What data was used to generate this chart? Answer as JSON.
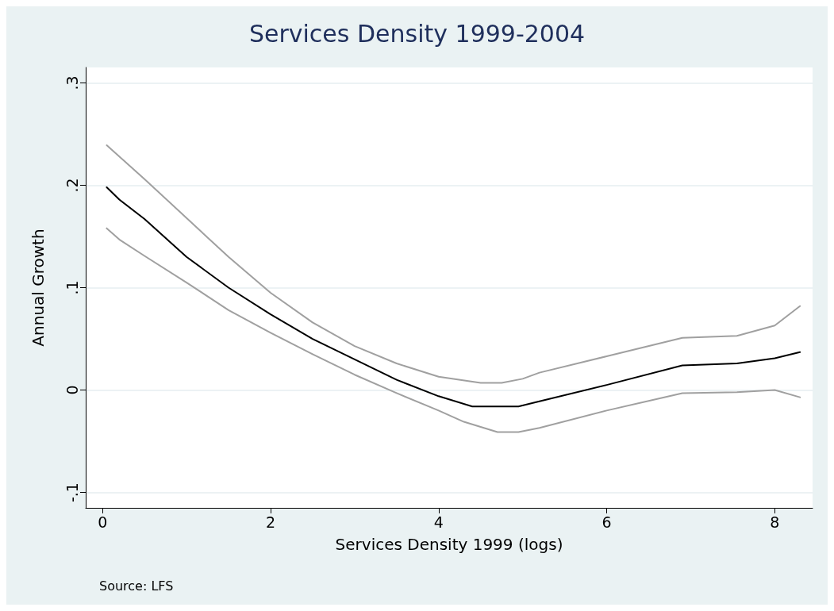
{
  "chart_data": {
    "type": "line",
    "title": "Services Density 1999-2004",
    "xlabel": "Services Density 1999 (logs)",
    "ylabel": "Annual Growth",
    "annotations": [
      "Source: LFS"
    ],
    "xlim": [
      -0.2,
      8.45
    ],
    "xticks": [
      0,
      2,
      4,
      6,
      8
    ],
    "ylim": [
      -0.115,
      0.315
    ],
    "yticks": [
      {
        "value": -0.1,
        "label": "-.1"
      },
      {
        "value": 0,
        "label": "0"
      },
      {
        "value": 0.1,
        "label": ".1"
      },
      {
        "value": 0.2,
        "label": ".2"
      },
      {
        "value": 0.3,
        "label": ".3"
      }
    ],
    "grid": "y",
    "marker": "none",
    "line_style": "solid",
    "series": [
      {
        "color": "#a0a0a0",
        "x": [
          0.05,
          0.2,
          0.5,
          1.0,
          1.5,
          2.0,
          2.5,
          3.0,
          3.5,
          4.0,
          4.5,
          4.75,
          5.0,
          5.2,
          6.0,
          6.9,
          7.55,
          8.0,
          8.3
        ],
        "values": [
          0.239,
          0.228,
          0.206,
          0.168,
          0.13,
          0.095,
          0.066,
          0.043,
          0.026,
          0.013,
          0.007,
          0.007,
          0.011,
          0.017,
          0.033,
          0.051,
          0.053,
          0.063,
          0.082
        ]
      },
      {
        "color": "#000000",
        "x": [
          0.05,
          0.2,
          0.5,
          1.0,
          1.5,
          2.0,
          2.5,
          3.0,
          3.5,
          4.0,
          4.4,
          4.95,
          5.2,
          6.0,
          6.9,
          7.55,
          8.0,
          8.3
        ],
        "values": [
          0.198,
          0.186,
          0.167,
          0.13,
          0.1,
          0.074,
          0.05,
          0.03,
          0.01,
          -0.006,
          -0.016,
          -0.016,
          -0.011,
          0.005,
          0.024,
          0.026,
          0.031,
          0.037
        ]
      },
      {
        "color": "#a0a0a0",
        "x": [
          0.05,
          0.2,
          0.5,
          1.0,
          1.5,
          2.0,
          2.5,
          3.0,
          3.5,
          4.0,
          4.3,
          4.7,
          4.95,
          5.2,
          6.0,
          6.9,
          7.55,
          8.0,
          8.3
        ],
        "values": [
          0.158,
          0.147,
          0.131,
          0.105,
          0.078,
          0.056,
          0.035,
          0.015,
          -0.003,
          -0.02,
          -0.031,
          -0.041,
          -0.041,
          -0.037,
          -0.02,
          -0.003,
          -0.002,
          0.0,
          -0.007
        ]
      }
    ]
  }
}
